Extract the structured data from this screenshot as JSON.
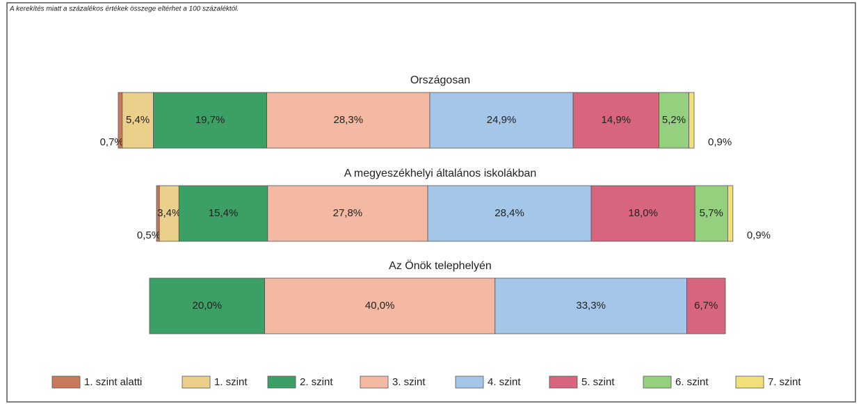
{
  "chart_data": {
    "type": "stacked-bar-horizontal",
    "subtitle": "A kerekítés miatt a százalékos értékek összege eltérhet a 100 százaléktól.",
    "categories": [
      "Országosan",
      "A megyeszékhelyi általános iskolákban",
      "Az Önök telephelyén"
    ],
    "xlim": [
      0,
      100
    ],
    "legend": "bottom",
    "series": [
      {
        "name": "1. szint alatti",
        "color": "#c87a5c",
        "values": [
          0.7,
          0.5,
          null
        ],
        "value_labels": [
          "0,7%",
          "0,5%",
          null
        ]
      },
      {
        "name": "1. szint",
        "color": "#ead08a",
        "values": [
          5.4,
          3.4,
          null
        ],
        "value_labels": [
          "5,4%",
          "3,4%",
          null
        ]
      },
      {
        "name": "2. szint",
        "color": "#3c9f66",
        "values": [
          19.7,
          15.4,
          20.0
        ],
        "value_labels": [
          "19,7%",
          "15,4%",
          "20,0%"
        ]
      },
      {
        "name": "3. szint",
        "color": "#f3b9a2",
        "values": [
          28.3,
          27.8,
          40.0
        ],
        "value_labels": [
          "28,3%",
          "27,8%",
          "40,0%"
        ]
      },
      {
        "name": "4. szint",
        "color": "#a4c6e8",
        "values": [
          24.9,
          28.4,
          33.3
        ],
        "value_labels": [
          "24,9%",
          "28,4%",
          "33,3%"
        ]
      },
      {
        "name": "5. szint",
        "color": "#d8657e",
        "values": [
          14.9,
          18.0,
          6.7
        ],
        "value_labels": [
          "14,9%",
          "18,0%",
          "6,7%"
        ]
      },
      {
        "name": "6. szint",
        "color": "#94d07e",
        "values": [
          5.2,
          5.7,
          null
        ],
        "value_labels": [
          "5,2%",
          "5,7%",
          null
        ]
      },
      {
        "name": "7. szint",
        "color": "#efe07a",
        "values": [
          0.9,
          0.9,
          null
        ],
        "value_labels": [
          "0,9%",
          "0,9%",
          null
        ]
      }
    ]
  }
}
